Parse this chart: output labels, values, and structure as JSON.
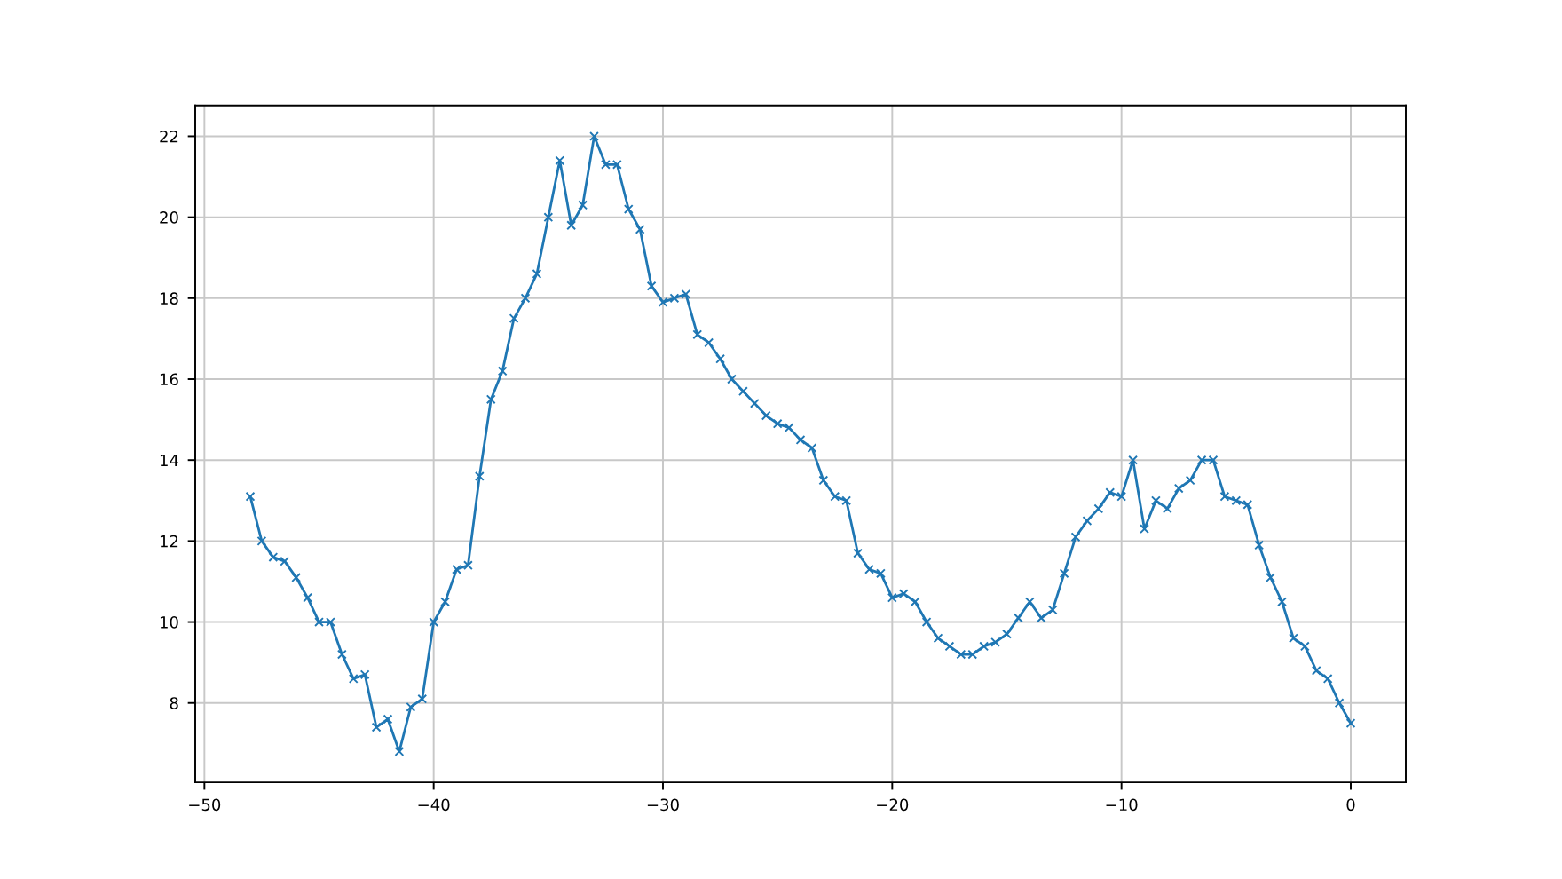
{
  "chart_data": {
    "type": "line",
    "x": [
      -48,
      -47.5,
      -47,
      -46.5,
      -46,
      -45.5,
      -45,
      -44.5,
      -44,
      -43.5,
      -43,
      -42.5,
      -42,
      -41.5,
      -41,
      -40.5,
      -40,
      -39.5,
      -39,
      -38.5,
      -38,
      -37.5,
      -37,
      -36.5,
      -36,
      -35.5,
      -35,
      -34.5,
      -34,
      -33.5,
      -33,
      -32.5,
      -32,
      -31.5,
      -31,
      -30.5,
      -30,
      -29.5,
      -29,
      -28.5,
      -28,
      -27.5,
      -27,
      -26.5,
      -26,
      -25.5,
      -25,
      -24.5,
      -24,
      -23.5,
      -23,
      -22.5,
      -22,
      -21.5,
      -21,
      -20.5,
      -20,
      -19.5,
      -19,
      -18.5,
      -18,
      -17.5,
      -17,
      -16.5,
      -16,
      -15.5,
      -15,
      -14.5,
      -14,
      -13.5,
      -13,
      -12.5,
      -12,
      -11.5,
      -11,
      -10.5,
      -10,
      -9.5,
      -9,
      -8.5,
      -8,
      -7.5,
      -7,
      -6.5,
      -6,
      -5.5,
      -5,
      -4.5,
      -4,
      -3.5,
      -3,
      -2.5,
      -2,
      -1.5,
      -1,
      -0.5,
      0
    ],
    "series": [
      {
        "color": "#1f77b4",
        "values": [
          13.1,
          12.0,
          11.6,
          11.5,
          11.1,
          10.6,
          10.0,
          10.0,
          9.2,
          8.6,
          8.7,
          7.4,
          7.6,
          6.8,
          7.9,
          8.1,
          10.0,
          10.5,
          11.3,
          11.4,
          13.6,
          15.5,
          16.2,
          17.5,
          18.0,
          18.6,
          20.0,
          21.4,
          19.8,
          20.3,
          22.0,
          21.3,
          21.3,
          20.2,
          19.7,
          18.3,
          17.9,
          18.0,
          18.1,
          17.1,
          16.9,
          16.5,
          16.0,
          15.7,
          15.4,
          15.1,
          14.9,
          14.8,
          14.5,
          14.3,
          13.5,
          13.1,
          13.0,
          11.7,
          11.3,
          11.2,
          10.6,
          10.7,
          10.5,
          10.0,
          9.6,
          9.4,
          9.2,
          9.2,
          9.4,
          9.5,
          9.7,
          10.1,
          10.5,
          10.1,
          10.3,
          11.2,
          12.1,
          12.5,
          12.8,
          13.2,
          13.1,
          14.0,
          12.3,
          13.0,
          12.8,
          13.3,
          13.5,
          14.0,
          14.0,
          13.1,
          13.0,
          12.9,
          11.9,
          11.1,
          10.5,
          9.6,
          9.4,
          8.8,
          8.6,
          8.0,
          7.5
        ]
      }
    ],
    "xlim": [
      -50.4,
      2.4
    ],
    "xticks": [
      -50,
      -40,
      -30,
      -20,
      -10,
      0
    ],
    "ylim": [
      6.04,
      22.76
    ],
    "yticks": [
      8,
      10,
      12,
      14,
      16,
      18,
      20,
      22
    ],
    "grid": true,
    "marker": "cross",
    "line_style": "solid"
  }
}
